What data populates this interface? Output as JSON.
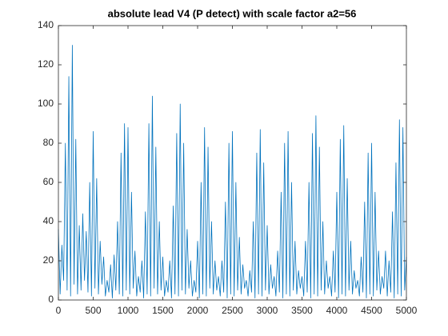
{
  "chart_data": {
    "type": "line",
    "title": "absolute lead V4 (P detect) with scale factor a2=56",
    "color": "#0072bd",
    "xlim": [
      0,
      5000
    ],
    "xticks": [
      0,
      500,
      1000,
      1500,
      2000,
      2500,
      3000,
      3500,
      4000,
      4500,
      5000
    ],
    "ylim": [
      0,
      140
    ],
    "yticks": [
      0,
      20,
      40,
      60,
      80,
      100,
      120,
      140
    ],
    "grid": false,
    "x": [
      0,
      25,
      50,
      75,
      100,
      125,
      150,
      175,
      200,
      225,
      250,
      275,
      300,
      325,
      350,
      375,
      400,
      425,
      450,
      475,
      500,
      525,
      550,
      575,
      600,
      625,
      650,
      675,
      700,
      725,
      750,
      775,
      800,
      825,
      850,
      875,
      900,
      925,
      950,
      975,
      1000,
      1025,
      1050,
      1075,
      1100,
      1125,
      1150,
      1175,
      1200,
      1225,
      1250,
      1275,
      1300,
      1325,
      1350,
      1375,
      1400,
      1425,
      1450,
      1475,
      1500,
      1525,
      1550,
      1575,
      1600,
      1625,
      1650,
      1675,
      1700,
      1725,
      1750,
      1775,
      1800,
      1825,
      1850,
      1875,
      1900,
      1925,
      1950,
      1975,
      2000,
      2025,
      2050,
      2075,
      2100,
      2125,
      2150,
      2175,
      2200,
      2225,
      2250,
      2275,
      2300,
      2325,
      2350,
      2375,
      2400,
      2425,
      2450,
      2475,
      2500,
      2525,
      2550,
      2575,
      2600,
      2625,
      2650,
      2675,
      2700,
      2725,
      2750,
      2775,
      2800,
      2825,
      2850,
      2875,
      2900,
      2925,
      2950,
      2975,
      3000,
      3025,
      3050,
      3075,
      3100,
      3125,
      3150,
      3175,
      3200,
      3225,
      3250,
      3275,
      3300,
      3325,
      3350,
      3375,
      3400,
      3425,
      3450,
      3475,
      3500,
      3525,
      3550,
      3575,
      3600,
      3625,
      3650,
      3675,
      3700,
      3725,
      3750,
      3775,
      3800,
      3825,
      3850,
      3875,
      3900,
      3925,
      3950,
      3975,
      4000,
      4025,
      4050,
      4075,
      4100,
      4125,
      4150,
      4175,
      4200,
      4225,
      4250,
      4275,
      4300,
      4325,
      4350,
      4375,
      4400,
      4425,
      4450,
      4475,
      4500,
      4525,
      4550,
      4575,
      4600,
      4625,
      4650,
      4675,
      4700,
      4725,
      4750,
      4775,
      4800,
      4825,
      4850,
      4875,
      4900,
      4925,
      4950,
      4975,
      5000
    ],
    "values": [
      36,
      3,
      28,
      10,
      80,
      5,
      114,
      2,
      130,
      8,
      82,
      3,
      38,
      5,
      44,
      10,
      35,
      4,
      60,
      2,
      86,
      6,
      62,
      3,
      30,
      8,
      22,
      2,
      10,
      4,
      18,
      1,
      23,
      5,
      40,
      3,
      75,
      2,
      90,
      5,
      88,
      3,
      55,
      6,
      25,
      2,
      12,
      4,
      20,
      1,
      45,
      3,
      90,
      2,
      104,
      6,
      78,
      3,
      40,
      5,
      22,
      2,
      10,
      4,
      20,
      1,
      48,
      3,
      85,
      2,
      100,
      5,
      80,
      3,
      36,
      6,
      20,
      2,
      10,
      4,
      30,
      1,
      60,
      3,
      88,
      2,
      78,
      6,
      40,
      3,
      20,
      5,
      12,
      2,
      20,
      4,
      50,
      1,
      80,
      3,
      86,
      2,
      60,
      5,
      32,
      3,
      18,
      6,
      10,
      2,
      15,
      4,
      40,
      1,
      75,
      3,
      87,
      2,
      70,
      5,
      38,
      3,
      18,
      6,
      12,
      2,
      25,
      4,
      55,
      1,
      80,
      3,
      86,
      2,
      60,
      5,
      30,
      3,
      15,
      6,
      12,
      2,
      30,
      4,
      60,
      1,
      85,
      3,
      94,
      2,
      78,
      5,
      40,
      3,
      20,
      6,
      12,
      2,
      25,
      4,
      55,
      1,
      82,
      3,
      89,
      2,
      62,
      5,
      30,
      3,
      15,
      6,
      10,
      2,
      22,
      4,
      50,
      1,
      75,
      3,
      80,
      2,
      55,
      5,
      25,
      3,
      12,
      6,
      25,
      2,
      20,
      4,
      45,
      1,
      70,
      3,
      92,
      2,
      88,
      5,
      22
    ]
  }
}
